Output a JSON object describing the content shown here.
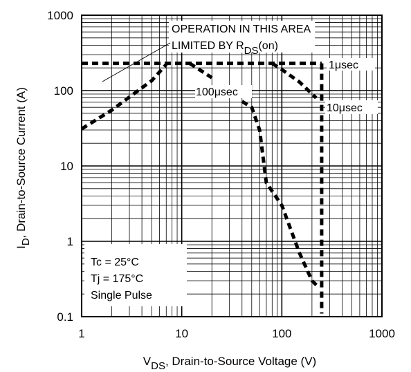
{
  "chart_data": {
    "type": "line",
    "x_scale": "log",
    "y_scale": "log",
    "xlim": [
      1,
      1000
    ],
    "ylim": [
      0.1,
      1000
    ],
    "x_ticks": [
      "1",
      "10",
      "100",
      "1000"
    ],
    "y_ticks": [
      "0.1",
      "1",
      "10",
      "100",
      "1000"
    ],
    "xlabel": {
      "main": "V",
      "sub": "DS",
      "rest": ",  Drain-to-Source Voltage (V)"
    },
    "ylabel": {
      "main": "I",
      "sub": "D",
      "rest": ",  Drain-to-Source Current (A)"
    },
    "grid": true,
    "series": [
      {
        "name": "",
        "role": "rds_limit",
        "x": [
          1,
          2,
          3,
          5,
          7
        ],
        "y": [
          31,
          55,
          82,
          135,
          222
        ]
      },
      {
        "name": "",
        "role": "flat_limit",
        "x": [
          1,
          7,
          250
        ],
        "y": [
          230,
          230,
          230
        ]
      },
      {
        "name": "",
        "role": "100usec",
        "x": [
          12,
          20
        ],
        "y": [
          230,
          148
        ]
      },
      {
        "name": "",
        "role": "1usec",
        "x": [
          80,
          100,
          150,
          220
        ],
        "y": [
          230,
          190,
          130,
          80
        ]
      },
      {
        "name": "",
        "role": "dc",
        "x": [
          40,
          50,
          60,
          70,
          100,
          150,
          200,
          230
        ],
        "y": [
          72,
          60,
          30,
          6,
          3,
          0.7,
          0.3,
          0.25
        ]
      },
      {
        "name": "",
        "role": "vmax",
        "x": [
          250,
          250
        ],
        "y": [
          230,
          0.11
        ]
      }
    ],
    "annotations": {
      "operation_line1": "OPERATION IN THIS AREA",
      "operation_line2": "LIMITED BY R",
      "operation_sub": "DS",
      "operation_suffix": "(on)",
      "label_1usec": "1μsec",
      "label_10usec": "10μsec",
      "label_100usec": "100μsec",
      "cond1": "Tc = 25°C",
      "cond2": "Tj = 175°C",
      "cond3": "Single Pulse"
    }
  }
}
